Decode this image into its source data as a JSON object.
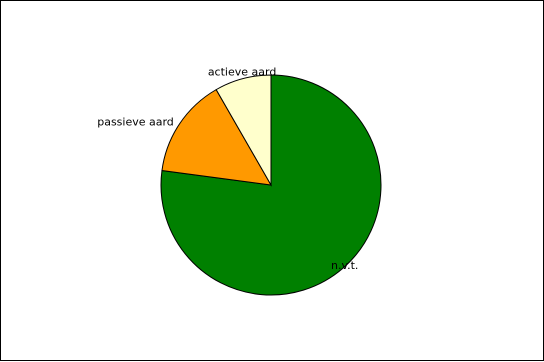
{
  "chart_data": {
    "type": "pie",
    "categories": [
      "n.v.t.",
      "passieve aard",
      "actieve aard"
    ],
    "values": [
      77.1,
      14.6,
      8.3
    ],
    "colors": [
      "#008000",
      "#ff9900",
      "#ffffcc"
    ],
    "start_angle_deg": 0,
    "direction": "clockwise",
    "slice_edge_color": "#000000"
  }
}
